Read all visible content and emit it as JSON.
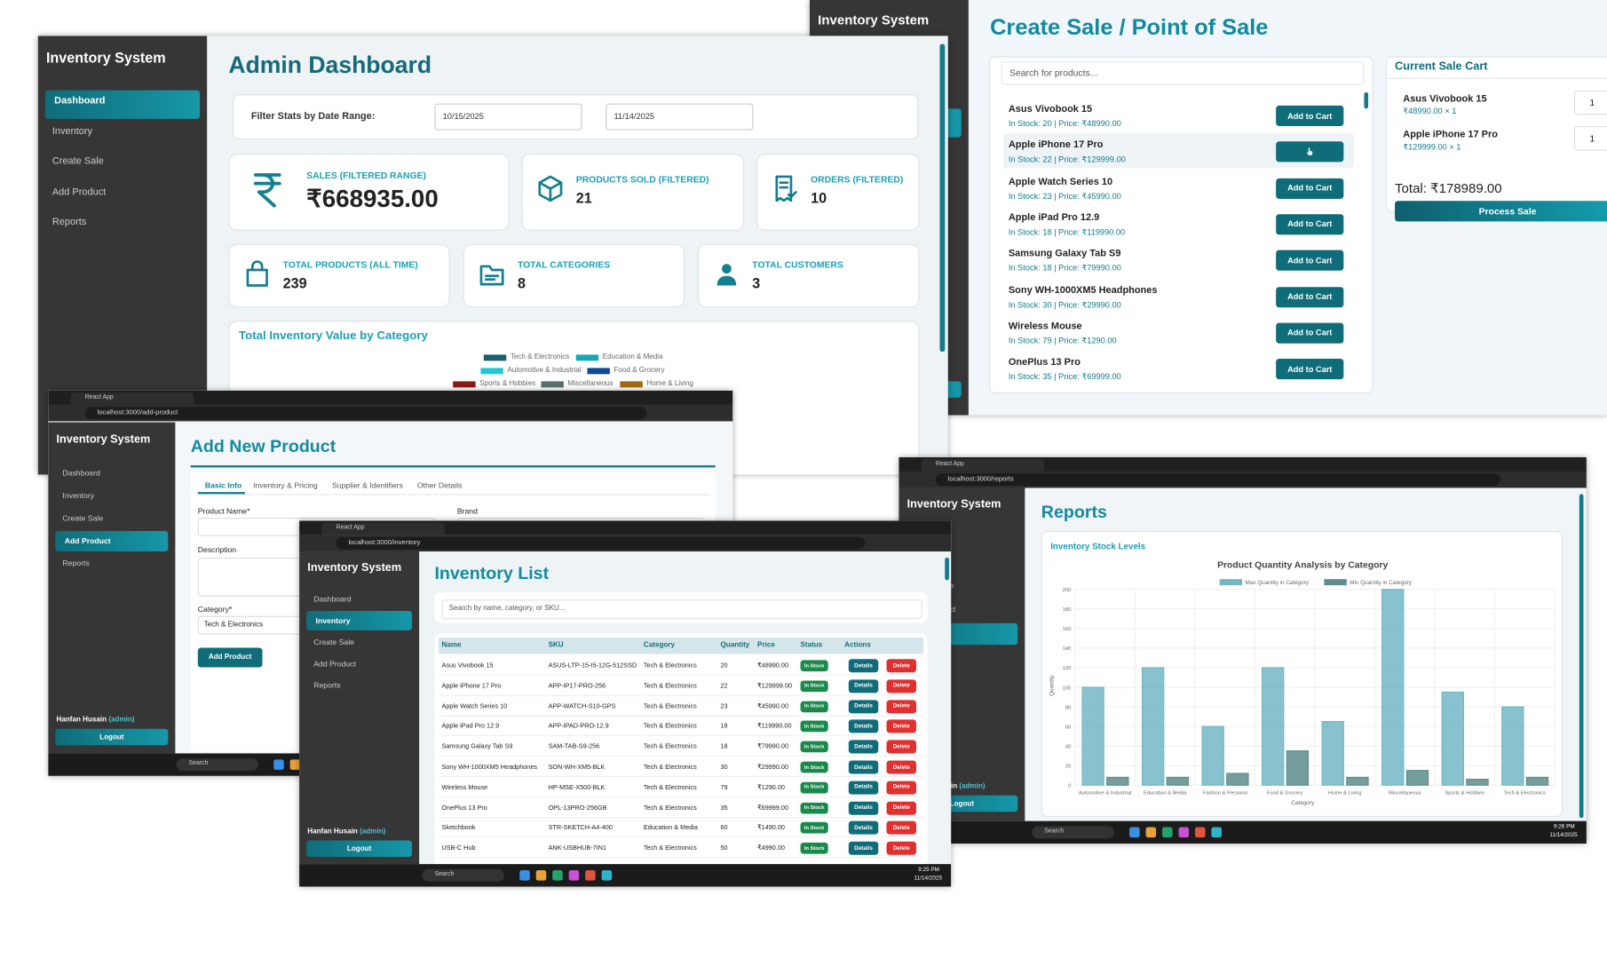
{
  "app_title": "Inventory System",
  "nav": [
    "Dashboard",
    "Inventory",
    "Create Sale",
    "Add Product",
    "Reports"
  ],
  "user_name": "Hanfan Husain",
  "user_role": "(admin)",
  "logout": "Logout",
  "browser": {
    "tab_title": "React App",
    "search": "Search"
  },
  "dashboard": {
    "title": "Admin Dashboard",
    "filter_label": "Filter Stats by Date Range:",
    "date_from": "10/15/2025",
    "date_to": "11/14/2025",
    "stats": [
      {
        "label": "SALES (FILTERED RANGE)",
        "value": "₹668935.00"
      },
      {
        "label": "PRODUCTS SOLD (FILTERED)",
        "value": 21
      },
      {
        "label": "ORDERS (FILTERED)",
        "value": 10
      },
      {
        "label": "TOTAL PRODUCTS (ALL TIME)",
        "value": 239
      },
      {
        "label": "TOTAL CATEGORIES",
        "value": 8
      },
      {
        "label": "TOTAL CUSTOMERS",
        "value": 3
      }
    ],
    "chart_title": "Total Inventory Value by Category",
    "legend": [
      {
        "name": "Tech & Electronics",
        "color": "#1b5e6e"
      },
      {
        "name": "Education & Media",
        "color": "#17a8b8"
      },
      {
        "name": "Automotive & Industrial",
        "color": "#22c7d6"
      },
      {
        "name": "Food & Grocery",
        "color": "#0d4a9e"
      },
      {
        "name": "Sports & Hobbies",
        "color": "#8b1a1a"
      },
      {
        "name": "Miscellaneous",
        "color": "#5a6e6e"
      },
      {
        "name": "Home & Living",
        "color": "#a06a10"
      }
    ]
  },
  "pos": {
    "title": "Create Sale / Point of Sale",
    "search_placeholder": "Search for products...",
    "products": [
      {
        "name": "Asus Vivobook 15",
        "info": "In Stock: 20 | Price: ₹48990.00",
        "button": "Add to Cart"
      },
      {
        "name": "Apple iPhone 17 Pro",
        "info": "In Stock: 22 | Price: ₹129999.00"
      },
      {
        "name": "Apple Watch Series 10",
        "info": "In Stock: 23 | Price: ₹45990.00",
        "button": "Add to Cart"
      },
      {
        "name": "Apple iPad Pro 12.9",
        "info": "In Stock: 18 | Price: ₹119990.00",
        "button": "Add to Cart"
      },
      {
        "name": "Samsung Galaxy Tab S9",
        "info": "In Stock: 18 | Price: ₹79990.00",
        "button": "Add to Cart"
      },
      {
        "name": "Sony WH-1000XM5 Headphones",
        "info": "In Stock: 30 | Price: ₹29990.00",
        "button": "Add to Cart"
      },
      {
        "name": "Wireless Mouse",
        "info": "In Stock: 79 | Price: ₹1290.00",
        "button": "Add to Cart"
      },
      {
        "name": "OnePlus 13 Pro",
        "info": "In Stock: 35 | Price: ₹69999.00",
        "button": "Add to Cart"
      }
    ],
    "cart_title": "Current Sale Cart",
    "cart": [
      {
        "name": "Asus Vivobook 15",
        "line": "₹48990.00 × 1",
        "qty": 1
      },
      {
        "name": "Apple iPhone 17 Pro",
        "line": "₹129999.00 × 1",
        "qty": 1
      }
    ],
    "total": "Total: ₹178989.00",
    "process": "Process Sale"
  },
  "add_product": {
    "url": "localhost:3000/add-product",
    "title": "Add New Product",
    "tabs": [
      "Basic Info",
      "Inventory & Pricing",
      "Supplier & Identifiers",
      "Other Details"
    ],
    "fields": {
      "product_name": "Product Name*",
      "brand": "Brand",
      "description": "Description",
      "category": "Category*",
      "category_value": "Tech & Electronics"
    },
    "button": "Add Product"
  },
  "inventory": {
    "url": "localhost:3000/inventory",
    "title": "Inventory List",
    "search_placeholder": "Search by name, category, or SKU...",
    "columns": [
      "Name",
      "SKU",
      "Category",
      "Quantity",
      "Price",
      "Status",
      "Actions"
    ],
    "rows": [
      [
        "Asus Vivobook 15",
        "ASUS-LTP-15-I5-12G-512SSD",
        "Tech & Electronics",
        20,
        "₹48990.00",
        "In Stock",
        "Details",
        "Delete"
      ],
      [
        "Apple iPhone 17 Pro",
        "APP-IP17-PRO-256",
        "Tech & Electronics",
        22,
        "₹129999.00",
        "In Stock",
        "Details",
        "Delete"
      ],
      [
        "Apple Watch Series 10",
        "APP-WATCH-S10-GPS",
        "Tech & Electronics",
        23,
        "₹45990.00",
        "In Stock",
        "Details",
        "Delete"
      ],
      [
        "Apple iPad Pro 12.9",
        "APP-IPAD-PRO-12.9",
        "Tech & Electronics",
        18,
        "₹119990.00",
        "In Stock",
        "Details",
        "Delete"
      ],
      [
        "Samsung Galaxy Tab S9",
        "SAM-TAB-S9-256",
        "Tech & Electronics",
        18,
        "₹79990.00",
        "In Stock",
        "Details",
        "Delete"
      ],
      [
        "Sony WH-1000XM5 Headphones",
        "SON-WH-XM5-BLK",
        "Tech & Electronics",
        30,
        "₹29990.00",
        "In Stock",
        "Details",
        "Delete"
      ],
      [
        "Wireless Mouse",
        "HP-MSE-X500-BLK",
        "Tech & Electronics",
        79,
        "₹1290.00",
        "In Stock",
        "Details",
        "Delete"
      ],
      [
        "OnePlus 13 Pro",
        "OPL-13PRO-256GB",
        "Tech & Electronics",
        35,
        "₹69999.00",
        "In Stock",
        "Details",
        "Delete"
      ],
      [
        "Sketchbook",
        "STR-SKETCH-A4-400",
        "Education & Media",
        60,
        "₹1490.00",
        "In Stock",
        "Details",
        "Delete"
      ],
      [
        "USB-C Hub",
        "ANK-USBHUB-7IN1",
        "Tech & Electronics",
        50,
        "₹4990.00",
        "In Stock",
        "Details",
        "Delete"
      ]
    ],
    "time": "9:25 PM",
    "date": "11/14/2025"
  },
  "reports": {
    "url": "localhost:3000/reports",
    "title": "Reports",
    "card_title": "Inventory Stock Levels",
    "time": "9:26 PM",
    "date": "11/14/2025",
    "chart_data": {
      "type": "bar",
      "title": "Product Quantity Analysis by Category",
      "x_label": "Category",
      "y_label": "Quantity",
      "categories": [
        "Automotive & Industrial",
        "Education & Media",
        "Fashion & Personal",
        "Food & Grocery",
        "Home & Living",
        "Miscellaneous",
        "Sports & Hobbies",
        "Tech & Electronics"
      ],
      "series": [
        {
          "name": "Max Quantity in Category",
          "color": "#73b7c5",
          "values": [
            100,
            120,
            60,
            120,
            65,
            200,
            95,
            80
          ]
        },
        {
          "name": "Min Quantity in Category",
          "color": "#5d8c8a",
          "values": [
            8,
            8,
            12,
            35,
            8,
            15,
            6,
            8
          ]
        }
      ],
      "ylim": [
        0,
        200
      ],
      "yticks": [
        0,
        20,
        40,
        60,
        80,
        100,
        120,
        140,
        160,
        180,
        200
      ],
      "grid": true
    }
  }
}
